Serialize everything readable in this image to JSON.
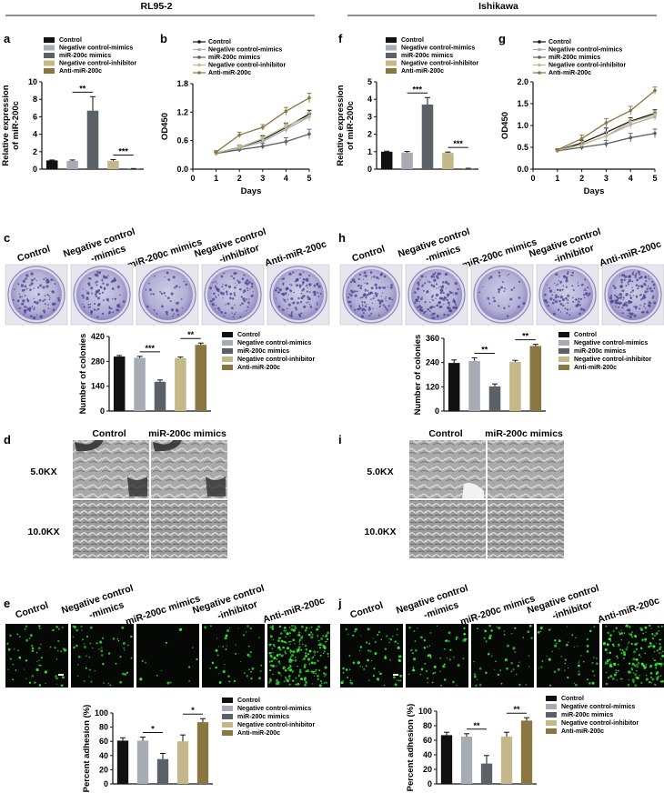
{
  "sections": [
    {
      "title": "RL95-2"
    },
    {
      "title": "Ishikawa"
    }
  ],
  "panels": {
    "a": {
      "letter": "a"
    },
    "b": {
      "letter": "b"
    },
    "c": {
      "letter": "c"
    },
    "d": {
      "letter": "d"
    },
    "e": {
      "letter": "e"
    },
    "f": {
      "letter": "f"
    },
    "g": {
      "letter": "g"
    },
    "h": {
      "letter": "h"
    },
    "i": {
      "letter": "i"
    },
    "j": {
      "letter": "j"
    }
  },
  "legend_labels": [
    "Control",
    "Negative control-mimics",
    "miR-200c mimics",
    "Negative control-inhibitor",
    "Anti-miR-200c"
  ],
  "series_colors": [
    "#111111",
    "#a7abb4",
    "#5c6167",
    "#c4b88a",
    "#8a7640"
  ],
  "colony_headers": [
    {
      "lines": [
        "Control"
      ]
    },
    {
      "lines": [
        "Negative control",
        "-mimics"
      ]
    },
    {
      "lines": [
        "miR-200c mimics"
      ]
    },
    {
      "lines": [
        "Negative control",
        "-inhibitor"
      ]
    },
    {
      "lines": [
        "Anti-miR-200c"
      ]
    }
  ],
  "sem": {
    "columns": [
      "Control",
      "miR-200c mimics"
    ],
    "rows": [
      "5.0KX",
      "10.0KX"
    ]
  },
  "chart_data": [
    {
      "panel": "a",
      "type": "bar",
      "ylabel": "Relative expression of miR-200c",
      "categories": [
        "Control",
        "Negative control-mimics",
        "miR-200c mimics",
        "Negative control-inhibitor",
        "Anti-miR-200c"
      ],
      "values": [
        1.0,
        0.95,
        6.7,
        0.95,
        0.05
      ],
      "errors": [
        0.05,
        0.1,
        1.6,
        0.15,
        0.02
      ],
      "ylim": [
        0,
        10
      ],
      "yticks": [
        0,
        2,
        4,
        6,
        8,
        10
      ],
      "significance": [
        {
          "from": 1,
          "to": 2,
          "label": "**"
        },
        {
          "from": 3,
          "to": 4,
          "label": "***"
        }
      ]
    },
    {
      "panel": "b",
      "type": "line",
      "xlabel": "Days",
      "ylabel": "OD450",
      "x": [
        1,
        2,
        3,
        4,
        5
      ],
      "xlim": [
        0,
        5
      ],
      "xticks": [
        0,
        1,
        2,
        3,
        4,
        5
      ],
      "ylim": [
        0,
        1.8
      ],
      "yticks": [
        0.0,
        0.6,
        1.2,
        1.8
      ],
      "yticklabels": [
        "0.0",
        "0.6",
        "1.2",
        "1.8"
      ],
      "series": [
        {
          "name": "Control",
          "values": [
            0.34,
            0.46,
            0.62,
            0.88,
            1.16
          ],
          "errors": [
            0.03,
            0.05,
            0.08,
            0.08,
            0.08
          ]
        },
        {
          "name": "Negative control-mimics",
          "values": [
            0.33,
            0.44,
            0.58,
            0.84,
            1.1
          ],
          "errors": [
            0.03,
            0.05,
            0.08,
            0.08,
            0.08
          ]
        },
        {
          "name": "miR-200c mimics",
          "values": [
            0.33,
            0.41,
            0.48,
            0.58,
            0.74
          ],
          "errors": [
            0.03,
            0.05,
            0.06,
            0.08,
            0.1
          ]
        },
        {
          "name": "Negative control-inhibitor",
          "values": [
            0.34,
            0.46,
            0.64,
            0.9,
            1.12
          ],
          "errors": [
            0.03,
            0.05,
            0.08,
            0.08,
            0.08
          ]
        },
        {
          "name": "Anti-miR-200c",
          "values": [
            0.36,
            0.72,
            0.88,
            1.22,
            1.5
          ],
          "errors": [
            0.03,
            0.06,
            0.06,
            0.08,
            0.1
          ]
        }
      ]
    },
    {
      "panel": "c",
      "type": "bar",
      "ylabel": "Number of colonies",
      "categories": [
        "Control",
        "Negative control-mimics",
        "miR-200c mimics",
        "Negative control-inhibitor",
        "Anti-miR-200c"
      ],
      "values": [
        307,
        300,
        165,
        298,
        373
      ],
      "errors": [
        6,
        8,
        10,
        6,
        10
      ],
      "ylim": [
        0,
        420
      ],
      "yticks": [
        0,
        140,
        280,
        420
      ],
      "significance": [
        {
          "from": 1,
          "to": 2,
          "label": "***"
        },
        {
          "from": 3,
          "to": 4,
          "label": "**"
        }
      ]
    },
    {
      "panel": "e",
      "type": "bar",
      "ylabel": "Percent adhesion (%)",
      "categories": [
        "Control",
        "Negative control-mimics",
        "miR-200c mimics",
        "Negative control-inhibitor",
        "Anti-miR-200c"
      ],
      "values": [
        61,
        61,
        35,
        60,
        87
      ],
      "errors": [
        4,
        5,
        8,
        9,
        5
      ],
      "ylim": [
        0,
        100
      ],
      "yticks": [
        0,
        20,
        40,
        60,
        80,
        100
      ],
      "significance": [
        {
          "from": 1,
          "to": 2,
          "label": "*"
        },
        {
          "from": 3,
          "to": 4,
          "label": "*"
        }
      ]
    },
    {
      "panel": "f",
      "type": "bar",
      "ylabel": "Relative expression of miR-200c",
      "categories": [
        "Control",
        "Negative control-mimics",
        "miR-200c mimics",
        "Negative control-inhibitor",
        "Anti-miR-200c"
      ],
      "values": [
        1.0,
        0.95,
        3.7,
        0.93,
        0.03
      ],
      "errors": [
        0.03,
        0.06,
        0.4,
        0.05,
        0.02
      ],
      "ylim": [
        0,
        5
      ],
      "yticks": [
        0,
        1,
        2,
        3,
        4,
        5
      ],
      "significance": [
        {
          "from": 1,
          "to": 2,
          "label": "***"
        },
        {
          "from": 3,
          "to": 4,
          "label": "***"
        }
      ]
    },
    {
      "panel": "g",
      "type": "line",
      "xlabel": "Days",
      "ylabel": "OD450",
      "x": [
        1,
        2,
        3,
        4,
        5
      ],
      "xlim": [
        0,
        5
      ],
      "xticks": [
        0,
        1,
        2,
        3,
        4,
        5
      ],
      "ylim": [
        0,
        2.0
      ],
      "yticks": [
        0.0,
        0.5,
        1.0,
        1.5,
        2.0
      ],
      "yticklabels": [
        "0.0",
        "0.5",
        "1.0",
        "1.5",
        "2.0"
      ],
      "series": [
        {
          "name": "Control",
          "values": [
            0.43,
            0.6,
            0.84,
            1.1,
            1.28
          ],
          "errors": [
            0.03,
            0.06,
            0.1,
            0.08,
            0.08
          ]
        },
        {
          "name": "Negative control-mimics",
          "values": [
            0.43,
            0.56,
            0.76,
            1.02,
            1.2
          ],
          "errors": [
            0.03,
            0.06,
            0.1,
            0.08,
            0.08
          ]
        },
        {
          "name": "miR-200c mimics",
          "values": [
            0.42,
            0.5,
            0.58,
            0.72,
            0.82
          ],
          "errors": [
            0.03,
            0.06,
            0.08,
            0.1,
            0.1
          ]
        },
        {
          "name": "Negative control-inhibitor",
          "values": [
            0.43,
            0.56,
            0.76,
            1.08,
            1.24
          ],
          "errors": [
            0.03,
            0.06,
            0.1,
            0.08,
            0.08
          ]
        },
        {
          "name": "Anti-miR-200c",
          "values": [
            0.44,
            0.7,
            1.06,
            1.34,
            1.8
          ],
          "errors": [
            0.03,
            0.08,
            0.1,
            0.1,
            0.08
          ]
        }
      ]
    },
    {
      "panel": "h",
      "type": "bar",
      "ylabel": "Number of colonies",
      "categories": [
        "Control",
        "Negative control-mimics",
        "miR-200c mimics",
        "Negative control-inhibitor",
        "Anti-miR-200c"
      ],
      "values": [
        238,
        248,
        122,
        243,
        322
      ],
      "errors": [
        15,
        15,
        12,
        8,
        8
      ],
      "ylim": [
        0,
        360
      ],
      "yticks": [
        0,
        120,
        240,
        360
      ],
      "significance": [
        {
          "from": 1,
          "to": 2,
          "label": "**"
        },
        {
          "from": 3,
          "to": 4,
          "label": "**"
        }
      ]
    },
    {
      "panel": "j",
      "type": "bar",
      "ylabel": "Percent adhesion (%)",
      "categories": [
        "Control",
        "Negative control-mimics",
        "miR-200c mimics",
        "Negative control-inhibitor",
        "Anti-miR-200c"
      ],
      "values": [
        67,
        65,
        28,
        65,
        87
      ],
      "errors": [
        4,
        4,
        11,
        6,
        4
      ],
      "ylim": [
        0,
        100
      ],
      "yticks": [
        0,
        20,
        40,
        60,
        80,
        100
      ],
      "significance": [
        {
          "from": 1,
          "to": 2,
          "label": "**"
        },
        {
          "from": 3,
          "to": 4,
          "label": "**"
        }
      ]
    }
  ]
}
